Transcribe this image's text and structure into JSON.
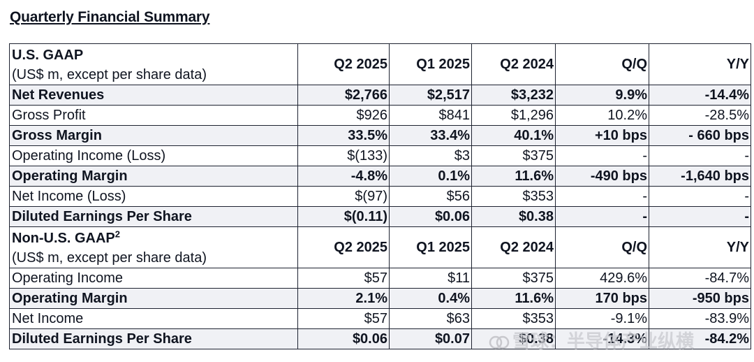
{
  "title": "Quarterly Financial Summary",
  "gaap": {
    "header": {
      "title": "U.S. GAAP",
      "subtitle": "(US$ m, except per share data)",
      "columns": [
        "Q2 2025",
        "Q1 2025",
        "Q2 2024",
        "Q/Q",
        "Y/Y"
      ]
    },
    "rows": [
      {
        "label": "Net Revenues",
        "cells": [
          "$2,766",
          "$2,517",
          "$3,232",
          "9.9%",
          "-14.4%"
        ]
      },
      {
        "label": "Gross Profit",
        "cells": [
          "$926",
          "$841",
          "$1,296",
          "10.2%",
          "-28.5%"
        ]
      },
      {
        "label": "Gross Margin",
        "cells": [
          "33.5%",
          "33.4%",
          "40.1%",
          "+10 bps",
          "- 660 bps"
        ]
      },
      {
        "label": "Operating Income (Loss)",
        "cells": [
          "$(133)",
          "$3",
          "$375",
          "-",
          "-"
        ]
      },
      {
        "label": "Operating Margin",
        "cells": [
          "-4.8%",
          "0.1%",
          "11.6%",
          "-490 bps",
          "-1,640 bps"
        ]
      },
      {
        "label": "Net Income (Loss)",
        "cells": [
          "$(97)",
          "$56",
          "$353",
          "-",
          "-"
        ]
      },
      {
        "label": "Diluted Earnings Per Share",
        "cells": [
          "$(0.11)",
          "$0.06",
          "$0.38",
          "-",
          "-"
        ]
      }
    ]
  },
  "non_gaap": {
    "header": {
      "title": "Non-U.S. GAAP",
      "title_sup": "2",
      "subtitle": "(US$ m, except per share data)",
      "columns": [
        "Q2 2025",
        "Q1 2025",
        "Q2 2024",
        "Q/Q",
        "Y/Y"
      ]
    },
    "rows": [
      {
        "label": "Operating Income",
        "cells": [
          "$57",
          "$11",
          "$375",
          "429.6%",
          "-84.7%"
        ]
      },
      {
        "label": "Operating Margin",
        "cells": [
          "2.1%",
          "0.4%",
          "11.6%",
          "170 bps",
          "-950 bps"
        ]
      },
      {
        "label": "Net Income",
        "cells": [
          "$57",
          "$63",
          "$353",
          "-9.1%",
          "-83.9%"
        ]
      },
      {
        "label": "Diluted Earnings Per Share",
        "cells": [
          "$0.06",
          "$0.07",
          "$0.38",
          "-14.3%",
          "-84.2%"
        ]
      }
    ]
  },
  "watermark": {
    "text": "雪球：半导体产业纵横",
    "color": "#c8c8cd"
  }
}
